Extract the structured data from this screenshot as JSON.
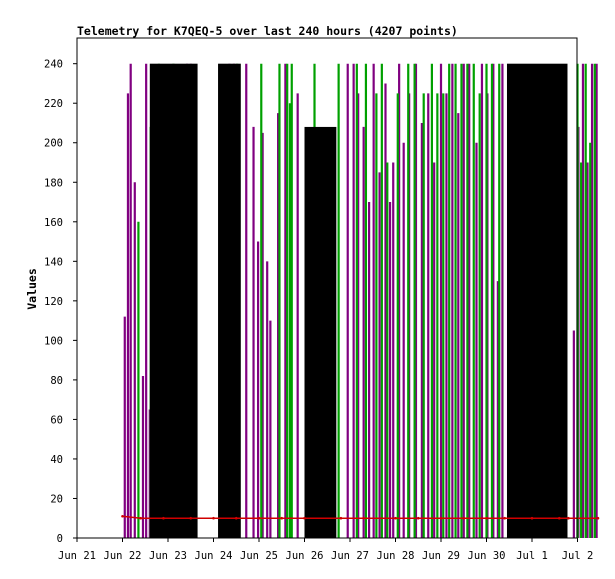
{
  "chart_data": {
    "type": "line",
    "title": "Telemetry for K7QEQ-5 over last 240 hours (4207 points)",
    "xlabel": "",
    "ylabel": "Values",
    "x_tick_labels": [
      "Jun 21",
      "Jun 22",
      "Jun 23",
      "Jun 24",
      "Jun 25",
      "Jun 26",
      "Jun 27",
      "Jun 28",
      "Jun 29",
      "Jun 30",
      "Jul 1",
      "Jul 2"
    ],
    "y_ticks": [
      0,
      20,
      40,
      60,
      80,
      100,
      120,
      140,
      160,
      180,
      200,
      220,
      240
    ],
    "xlim": [
      "2024-06-21",
      "2024-07-02"
    ],
    "ylim": [
      0,
      253
    ],
    "grid": false,
    "legend": "none",
    "colors": {
      "black": "#000000",
      "green": "#00a000",
      "purple": "#800080",
      "red": "#d00000"
    },
    "black_bands": [
      {
        "x": [
          1.6,
          2.65
        ],
        "y": [
          0,
          240
        ]
      },
      {
        "x": [
          3.1,
          3.6
        ],
        "y": [
          0,
          240
        ]
      },
      {
        "x": [
          5.0,
          5.7
        ],
        "y": [
          0,
          208
        ]
      },
      {
        "x": [
          9.45,
          10.78
        ],
        "y": [
          0,
          240
        ]
      }
    ],
    "series": [
      {
        "color": "#800080",
        "spikes": [
          [
            1.05,
            112
          ],
          [
            1.12,
            225
          ],
          [
            1.18,
            240
          ],
          [
            1.27,
            180
          ],
          [
            1.45,
            82
          ],
          [
            1.52,
            240
          ],
          [
            1.6,
            65
          ],
          [
            1.7,
            140
          ],
          [
            1.8,
            95
          ],
          [
            1.88,
            160
          ],
          [
            1.95,
            128
          ],
          [
            2.05,
            140
          ],
          [
            2.15,
            203
          ],
          [
            2.3,
            115
          ],
          [
            2.42,
            240
          ],
          [
            2.5,
            240
          ],
          [
            3.35,
            240
          ],
          [
            3.45,
            240
          ],
          [
            3.55,
            210
          ],
          [
            3.72,
            240
          ],
          [
            3.88,
            208
          ],
          [
            3.98,
            150
          ],
          [
            4.08,
            205
          ],
          [
            4.18,
            140
          ],
          [
            4.25,
            110
          ],
          [
            4.42,
            215
          ],
          [
            4.58,
            240
          ],
          [
            4.85,
            225
          ],
          [
            5.95,
            240
          ],
          [
            6.08,
            240
          ],
          [
            6.18,
            225
          ],
          [
            6.3,
            208
          ],
          [
            6.42,
            170
          ],
          [
            6.52,
            240
          ],
          [
            6.65,
            185
          ],
          [
            6.78,
            230
          ],
          [
            6.88,
            170
          ],
          [
            6.95,
            190
          ],
          [
            7.08,
            240
          ],
          [
            7.18,
            200
          ],
          [
            7.3,
            225
          ],
          [
            7.45,
            240
          ],
          [
            7.58,
            210
          ],
          [
            7.72,
            225
          ],
          [
            7.85,
            190
          ],
          [
            8.0,
            240
          ],
          [
            8.12,
            225
          ],
          [
            8.25,
            240
          ],
          [
            8.38,
            215
          ],
          [
            8.5,
            240
          ],
          [
            8.62,
            240
          ],
          [
            8.78,
            200
          ],
          [
            8.9,
            240
          ],
          [
            9.02,
            225
          ],
          [
            9.15,
            240
          ],
          [
            9.25,
            130
          ],
          [
            9.35,
            240
          ],
          [
            10.92,
            105
          ],
          [
            11.02,
            208
          ],
          [
            11.12,
            240
          ],
          [
            11.22,
            190
          ],
          [
            11.32,
            240
          ],
          [
            11.42,
            240
          ]
        ]
      },
      {
        "color": "#00a000",
        "spikes": [
          [
            1.35,
            160
          ],
          [
            1.62,
            208
          ],
          [
            1.8,
            240
          ],
          [
            2.12,
            240
          ],
          [
            3.28,
            225
          ],
          [
            3.52,
            240
          ],
          [
            4.05,
            240
          ],
          [
            4.45,
            240
          ],
          [
            4.62,
            240
          ],
          [
            4.68,
            220
          ],
          [
            4.72,
            240
          ],
          [
            5.08,
            50
          ],
          [
            5.22,
            240
          ],
          [
            5.75,
            240
          ],
          [
            6.15,
            240
          ],
          [
            6.35,
            240
          ],
          [
            6.58,
            225
          ],
          [
            6.7,
            240
          ],
          [
            6.82,
            190
          ],
          [
            7.05,
            225
          ],
          [
            7.28,
            240
          ],
          [
            7.42,
            240
          ],
          [
            7.62,
            225
          ],
          [
            7.8,
            240
          ],
          [
            7.92,
            225
          ],
          [
            8.05,
            225
          ],
          [
            8.18,
            240
          ],
          [
            8.32,
            240
          ],
          [
            8.45,
            240
          ],
          [
            8.58,
            240
          ],
          [
            8.72,
            240
          ],
          [
            8.85,
            225
          ],
          [
            9.0,
            240
          ],
          [
            9.12,
            240
          ],
          [
            9.28,
            240
          ],
          [
            11.0,
            240
          ],
          [
            11.08,
            190
          ],
          [
            11.18,
            240
          ],
          [
            11.28,
            200
          ],
          [
            11.38,
            240
          ]
        ]
      },
      {
        "color": "#d00000",
        "points": [
          [
            1.0,
            11
          ],
          [
            1.4,
            10
          ],
          [
            1.9,
            10
          ],
          [
            2.5,
            10
          ],
          [
            3.0,
            10
          ],
          [
            3.5,
            10
          ],
          [
            4.0,
            10
          ],
          [
            4.5,
            10
          ],
          [
            5.0,
            10
          ],
          [
            5.8,
            10
          ],
          [
            6.3,
            10
          ],
          [
            7.0,
            10
          ],
          [
            7.5,
            10
          ],
          [
            8.0,
            10
          ],
          [
            8.5,
            10
          ],
          [
            9.0,
            10
          ],
          [
            9.4,
            10
          ],
          [
            10.0,
            10
          ],
          [
            10.6,
            10
          ],
          [
            10.8,
            10
          ],
          [
            11.45,
            10
          ]
        ]
      }
    ]
  }
}
